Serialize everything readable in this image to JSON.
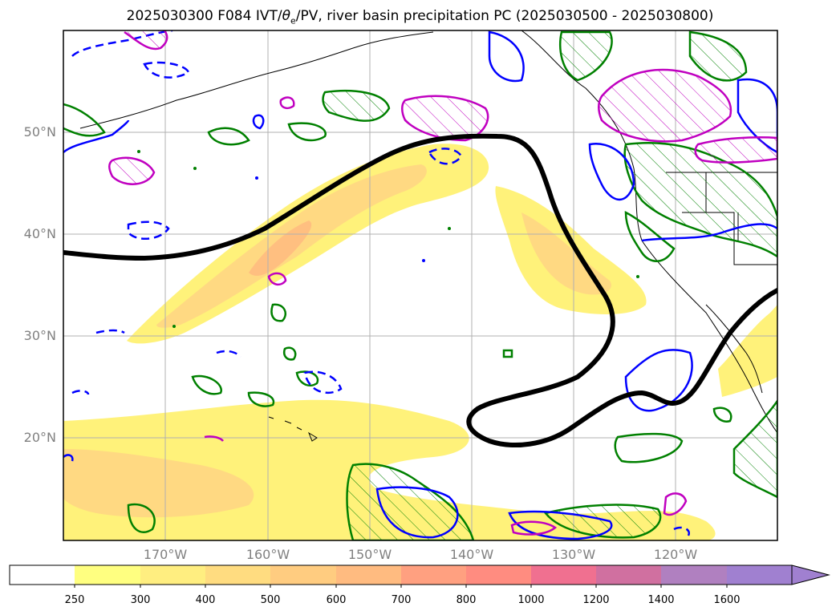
{
  "title": "2025030300 F084 IVT/θe/PV, river basin precipitation PC (2025030500 - 2025030800)",
  "title_parts": {
    "prefix": "2025030300 F084 IVT/",
    "theta": "θ",
    "sub": "e",
    "suffix": "/PV, river basin precipitation PC (2025030500 - 2025030800)"
  },
  "latitude_labels": [
    "50°N",
    "40°N",
    "30°N",
    "20°N"
  ],
  "longitude_labels": [
    "170°W",
    "160°W",
    "150°W",
    "140°W",
    "130°W",
    "120°W"
  ],
  "colorbar": {
    "ticks": [
      "250",
      "300",
      "400",
      "500",
      "600",
      "700",
      "800",
      "1000",
      "1200",
      "1400",
      "1600"
    ],
    "colors": [
      "#ffffff",
      "#ffff80",
      "#ffee80",
      "#ffdc80",
      "#ffcc80",
      "#ffbb80",
      "#ffa080",
      "#ff8c80",
      "#f07090",
      "#d070a0",
      "#b080c0",
      "#a080d0"
    ]
  },
  "colors": {
    "ivt_1": "#fff27a",
    "ivt_2": "#ffd982",
    "ivt_3": "#ffbf80",
    "pv_contour": "#000000",
    "green_contour": "#008000",
    "blue_contour": "#0000ff",
    "magenta_contour": "#c000c0",
    "grid": "#b0b0b0"
  }
}
